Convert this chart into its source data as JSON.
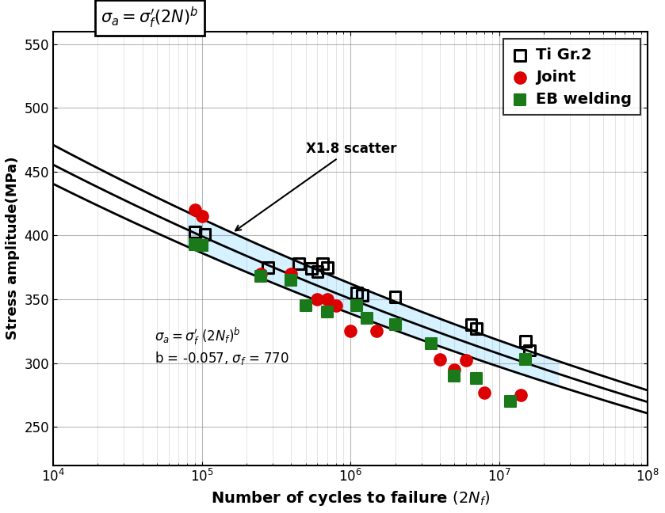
{
  "title_formula": "$\\sigma_a = \\sigma_f^{\\prime}(2N)^b$",
  "xlabel": "Number of cycles to failure $(2N_f)$",
  "ylabel": "Stress amplitude(MPa)",
  "ylim": [
    220,
    560
  ],
  "xlim": [
    10000.0,
    100000000.0
  ],
  "b": -0.057,
  "sigma_f": 770,
  "scatter_factor": 1.8,
  "annotation_text": "X1.8 scatter",
  "ti_gr2_x": [
    90000.0,
    105000.0,
    280000.0,
    450000.0,
    550000.0,
    600000.0,
    650000.0,
    700000.0,
    1100000.0,
    1200000.0,
    2000000.0,
    6500000.0,
    7000000.0,
    15000000.0,
    16000000.0
  ],
  "ti_gr2_y": [
    403,
    401,
    375,
    378,
    374,
    372,
    378,
    375,
    355,
    353,
    352,
    330,
    327,
    317,
    310
  ],
  "joint_x": [
    90000.0,
    100000.0,
    250000.0,
    400000.0,
    600000.0,
    700000.0,
    800000.0,
    1000000.0,
    1500000.0,
    4000000.0,
    5000000.0,
    6000000.0,
    8000000.0,
    14000000.0
  ],
  "joint_y": [
    420,
    415,
    370,
    370,
    350,
    350,
    345,
    325,
    325,
    303,
    295,
    302,
    277,
    275
  ],
  "eb_x": [
    90000.0,
    100000.0,
    250000.0,
    400000.0,
    500000.0,
    700000.0,
    1100000.0,
    1300000.0,
    2000000.0,
    3500000.0,
    5000000.0,
    7000000.0,
    12000000.0,
    15000000.0
  ],
  "eb_y": [
    393,
    392,
    368,
    365,
    345,
    340,
    345,
    335,
    330,
    315,
    290,
    288,
    270,
    303
  ],
  "background_color": "#ffffff",
  "grid_color": "#888888",
  "scatter_band_color": "#cceeff",
  "line_color": "#000000",
  "ti_gr2_color": "#000000",
  "joint_color": "#dd0000",
  "eb_color": "#1a7a1a"
}
